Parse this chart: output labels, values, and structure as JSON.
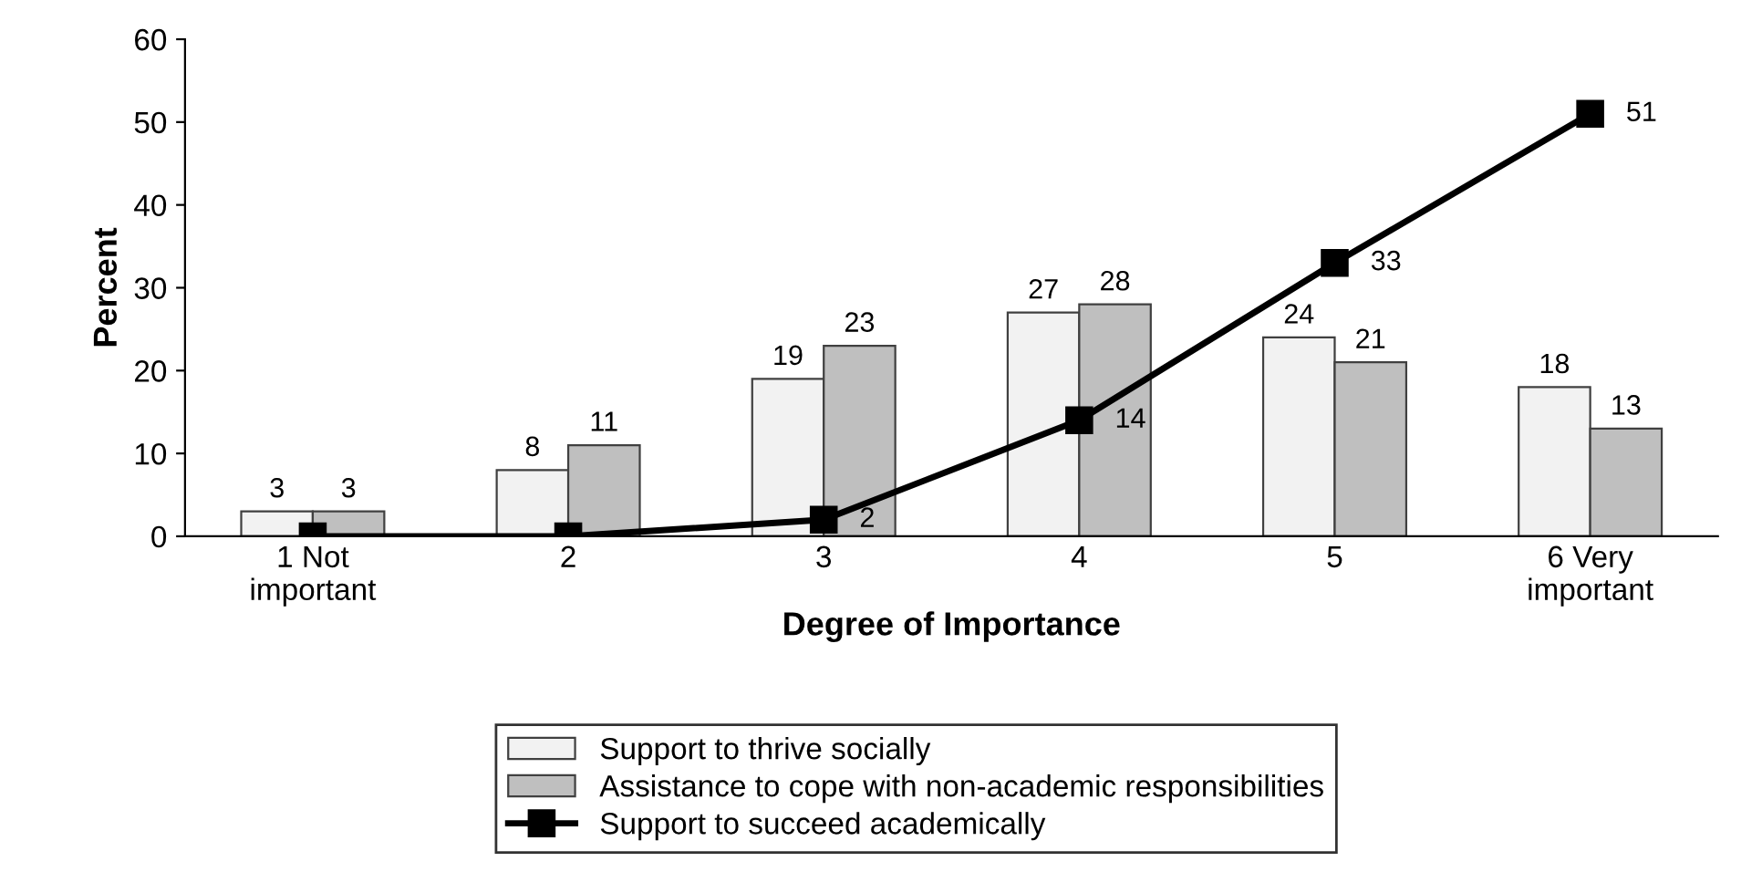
{
  "chart_data": {
    "type": "bar",
    "xlabel": "Degree of Importance",
    "ylabel": "Percent",
    "categories": [
      "1 Not\nimportant",
      "2",
      "3",
      "4",
      "5",
      "6 Very\nimportant"
    ],
    "series": [
      {
        "name": "Support to thrive socially",
        "color": "#f2f2f2",
        "values": [
          3,
          8,
          19,
          27,
          24,
          18
        ],
        "value_labels": [
          "3",
          "8",
          "19",
          "27",
          "24",
          "18"
        ]
      },
      {
        "name": "Assistance to cope with non-academic responsibilities",
        "color": "#bfbfbf",
        "values": [
          3,
          11,
          23,
          28,
          21,
          13
        ],
        "value_labels": [
          "3",
          "11",
          "23",
          "28",
          "21",
          "13"
        ]
      },
      {
        "name": "Support to succeed academically",
        "type": "line",
        "color": "#000000",
        "marker": "square",
        "line_style": "solid",
        "values": [
          0,
          0,
          2,
          14,
          33,
          51
        ],
        "value_labels": [
          null,
          null,
          "2",
          "14",
          "33",
          "51"
        ]
      }
    ],
    "ylim": [
      0,
      60
    ],
    "yticks": [
      0,
      10,
      20,
      30,
      40,
      50,
      60
    ],
    "grid": false,
    "legend": "bottom"
  }
}
